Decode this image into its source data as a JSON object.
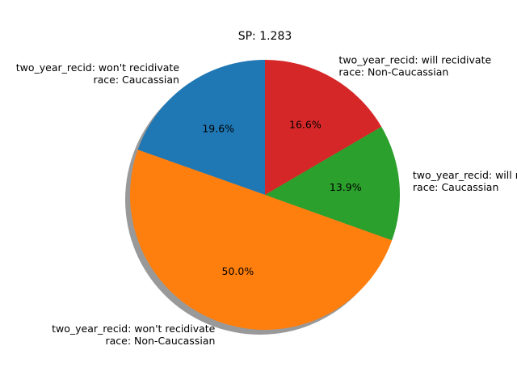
{
  "chart_data": {
    "type": "pie",
    "title": "SP: 1.283",
    "startangle": 90,
    "shadow": true,
    "slices": [
      {
        "label_lines": [
          "two_year_recid: won't recidivate",
          "race: Caucassian"
        ],
        "value": 19.6,
        "pct_label": "19.6%",
        "color": "#1f77b4"
      },
      {
        "label_lines": [
          "two_year_recid: won't recidivate",
          "race: Non-Caucassian"
        ],
        "value": 50.0,
        "pct_label": "50.0%",
        "color": "#ff7f0e"
      },
      {
        "label_lines": [
          "two_year_recid: will recidivate",
          "race: Caucassian"
        ],
        "value": 13.9,
        "pct_label": "13.9%",
        "color": "#2ca02c"
      },
      {
        "label_lines": [
          "two_year_recid: will recidivate",
          "race: Non-Caucassian"
        ],
        "value": 16.6,
        "pct_label": "16.6%",
        "color": "#d62728"
      }
    ]
  }
}
